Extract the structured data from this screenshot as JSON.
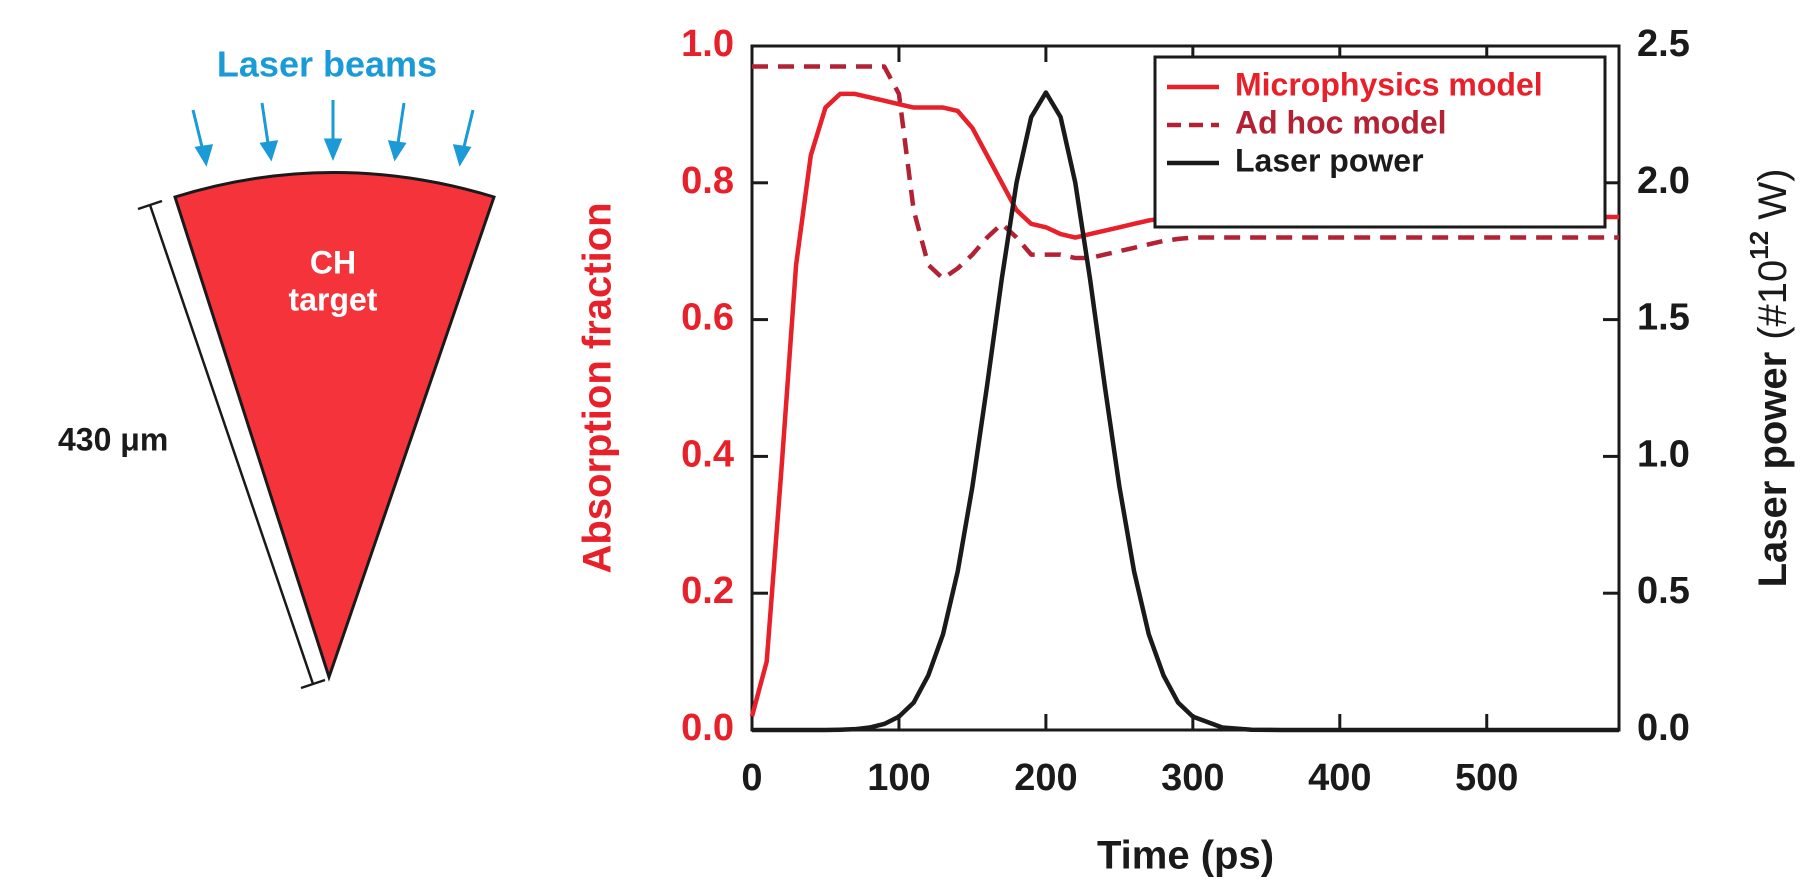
{
  "diagram": {
    "beams_label": "Laser beams",
    "target_label": [
      "CH",
      "target"
    ],
    "dimension_label": "430 μm"
  },
  "chart_data": {
    "type": "line",
    "xlabel": "Time (ps)",
    "ylabel": "Absorption fraction",
    "y2label": "Laser power",
    "y2unit": {
      "prefix": "(#10",
      "sup": "12",
      "suffix": " W)"
    },
    "x": [
      0,
      10,
      20,
      30,
      40,
      50,
      60,
      70,
      80,
      90,
      100,
      110,
      120,
      130,
      140,
      150,
      160,
      170,
      180,
      190,
      200,
      210,
      220,
      230,
      240,
      250,
      260,
      270,
      280,
      290,
      300,
      320,
      340,
      360,
      400,
      450,
      500,
      590
    ],
    "xlim": [
      0,
      590
    ],
    "xticks": [
      0,
      100,
      200,
      300,
      400,
      500
    ],
    "ylim": [
      0,
      1
    ],
    "yticks": [
      {
        "value": 0,
        "label": "0.0"
      },
      0.2,
      0.4,
      0.6,
      0.8,
      {
        "value": 1,
        "label": "1.0"
      }
    ],
    "y2lim": [
      0,
      2.5
    ],
    "y2ticks": [
      {
        "value": 0,
        "label": "0.0"
      },
      0.5,
      {
        "value": 1,
        "label": "1.0"
      },
      1.5,
      {
        "value": 2,
        "label": "2.0"
      },
      2.5
    ],
    "legend": "upper right",
    "series": [
      {
        "name": "Microphysics model",
        "color": "#e8202a",
        "dash": false,
        "values": [
          0.02,
          0.1,
          0.38,
          0.68,
          0.84,
          0.91,
          0.93,
          0.93,
          0.925,
          0.92,
          0.915,
          0.91,
          0.91,
          0.91,
          0.905,
          0.88,
          0.84,
          0.8,
          0.76,
          0.74,
          0.735,
          0.725,
          0.72,
          0.725,
          0.73,
          0.735,
          0.74,
          0.745,
          0.748,
          0.75,
          0.75,
          0.75,
          0.75,
          0.75,
          0.75,
          0.75,
          0.75,
          0.75
        ]
      },
      {
        "name": "Ad hoc model",
        "color": "#b22234",
        "dash": true,
        "values": [
          0.97,
          0.97,
          0.97,
          0.97,
          0.97,
          0.97,
          0.97,
          0.97,
          0.97,
          0.97,
          0.93,
          0.76,
          0.68,
          0.66,
          0.675,
          0.695,
          0.72,
          0.74,
          0.72,
          0.695,
          0.695,
          0.695,
          0.69,
          0.69,
          0.695,
          0.7,
          0.705,
          0.71,
          0.715,
          0.718,
          0.72,
          0.72,
          0.72,
          0.72,
          0.72,
          0.72,
          0.72,
          0.72
        ]
      },
      {
        "name": "Laser power",
        "color": "#1a1a1a",
        "dash": false,
        "axis": "y2",
        "values": [
          0,
          0,
          0,
          0,
          0,
          0,
          0.001,
          0.003,
          0.009,
          0.022,
          0.049,
          0.1,
          0.2,
          0.35,
          0.58,
          0.89,
          1.26,
          1.65,
          2.0,
          2.24,
          2.33,
          2.24,
          2.0,
          1.65,
          1.26,
          0.89,
          0.58,
          0.35,
          0.2,
          0.1,
          0.049,
          0.009,
          0.001,
          0,
          0,
          0,
          0,
          0
        ]
      }
    ]
  }
}
